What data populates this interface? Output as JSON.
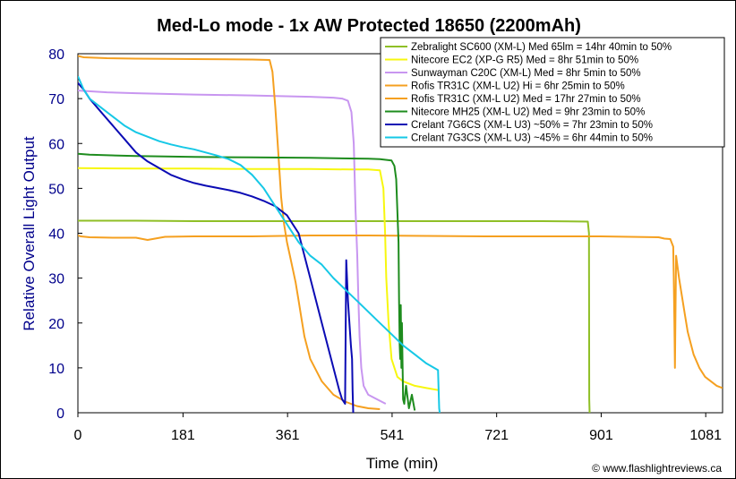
{
  "chart_data": {
    "type": "line",
    "title": "Med-Lo mode - 1x AW Protected 18650 (2200mAh)",
    "xlabel": "Time (min)",
    "ylabel": "Relative Overall Light Output",
    "xlim": [
      0,
      1110
    ],
    "ylim": [
      0,
      80
    ],
    "xticks": [
      0,
      181,
      361,
      541,
      721,
      901,
      1081
    ],
    "yticks": [
      0,
      10,
      20,
      30,
      40,
      50,
      60,
      70,
      80
    ],
    "grid": false,
    "legend_position": "top-right",
    "credit": "© www.flashlightreviews.ca",
    "series": [
      {
        "name": "Zebralight SC600 (XM-L) Med 65lm = 14hr 40min to 50%",
        "color": "#8FBF26",
        "x": [
          0,
          100,
          200,
          300,
          400,
          500,
          600,
          700,
          800,
          878,
          880,
          880.5,
          881
        ],
        "y": [
          42.8,
          42.8,
          42.7,
          42.7,
          42.7,
          42.7,
          42.7,
          42.7,
          42.7,
          42.6,
          40,
          3,
          0
        ]
      },
      {
        "name": "Nitecore EC2 (XP-G R5) Med = 8hr 51min to 50%",
        "color": "#F7F70F",
        "x": [
          0,
          100,
          200,
          300,
          400,
          470,
          500,
          520,
          526,
          529,
          531,
          535,
          540,
          550,
          560,
          580,
          600,
          622
        ],
        "y": [
          54.5,
          54.4,
          54.4,
          54.3,
          54.3,
          54.2,
          54.2,
          54,
          50,
          40,
          30,
          20,
          12,
          8,
          7,
          6,
          5.5,
          5
        ]
      },
      {
        "name": "Sunwayman C20C (XM-L) Med = 8hr 5min to 50%",
        "color": "#C896F0",
        "x": [
          0,
          50,
          100,
          200,
          300,
          400,
          440,
          455,
          465,
          471,
          475,
          478,
          481,
          483,
          485,
          488,
          492,
          500,
          515,
          530
        ],
        "y": [
          71.8,
          71.4,
          71.2,
          70.9,
          70.7,
          70.4,
          70.2,
          70,
          69.5,
          67,
          60,
          45,
          35,
          25,
          17,
          10,
          6,
          4,
          3,
          2
        ]
      },
      {
        "name": "Rofis TR31C (XM-L U2) Hi = 6hr 25min to 50%",
        "color": "#F5A020",
        "x": [
          0,
          10,
          50,
          100,
          200,
          300,
          330,
          335,
          340,
          345,
          350,
          355,
          360,
          365,
          370,
          375,
          380,
          385,
          390,
          400,
          420,
          440,
          460,
          480,
          500,
          520
        ],
        "y": [
          79.5,
          79.2,
          79,
          78.9,
          78.8,
          78.7,
          78.6,
          76,
          68,
          58,
          48,
          42,
          38,
          35,
          32,
          29,
          25,
          21,
          17,
          12,
          7,
          4,
          2.5,
          1.5,
          1,
          0.8
        ]
      },
      {
        "name": "Rofis TR31C (XM-L U2) Med = 17hr 27min to 50%",
        "color": "#F5A020",
        "x": [
          0,
          5,
          20,
          60,
          100,
          120,
          150,
          200,
          300,
          400,
          500,
          600,
          700,
          800,
          900,
          950,
          1000,
          1010,
          1020,
          1025,
          1026,
          1027,
          1028,
          1029,
          1030,
          1032,
          1035,
          1040,
          1045,
          1050,
          1060,
          1070,
          1080,
          1090,
          1100,
          1110
        ],
        "y": [
          39.5,
          39.3,
          39.1,
          39,
          39,
          38.5,
          39.2,
          39.3,
          39.3,
          39.5,
          39.5,
          39.4,
          39.3,
          39.3,
          39.3,
          39.2,
          39.1,
          38.8,
          38.7,
          37,
          30,
          20,
          10,
          24,
          35,
          33,
          30,
          26,
          22,
          18,
          13,
          10,
          8,
          7,
          6,
          5.5
        ]
      },
      {
        "name": "Nitecore MH25 (XM-L U2) Med = 9hr 23min to 50%",
        "color": "#1E8C1E",
        "x": [
          0,
          20,
          100,
          200,
          300,
          400,
          500,
          520,
          540,
          545,
          548,
          550,
          552,
          553,
          554,
          555,
          556,
          557,
          558,
          560,
          562,
          565,
          570,
          575,
          580
        ],
        "y": [
          57.7,
          57.5,
          57.2,
          57,
          56.9,
          56.8,
          56.6,
          56.5,
          56.2,
          55,
          52,
          45,
          38,
          25,
          15,
          12,
          24,
          10,
          20,
          3,
          2,
          6,
          1,
          4,
          0.5
        ]
      },
      {
        "name": "Crelant 7G6CS (XM-L U3) ~50% = 7hr 23min to 50%",
        "color": "#0B0BB4",
        "x": [
          0,
          10,
          20,
          40,
          60,
          80,
          100,
          120,
          140,
          160,
          180,
          200,
          220,
          240,
          260,
          280,
          300,
          320,
          340,
          360,
          380,
          400,
          420,
          440,
          450,
          455,
          460,
          462,
          465,
          470,
          472,
          473,
          474
        ],
        "y": [
          73.5,
          72,
          70,
          67,
          64,
          61,
          58,
          56,
          54.5,
          53,
          52,
          51.2,
          50.6,
          50.1,
          49.6,
          49,
          48.2,
          47.2,
          46,
          44,
          40,
          30,
          20,
          10,
          5,
          3,
          2,
          34,
          25,
          15,
          12,
          5,
          0
        ]
      },
      {
        "name": "Crelant 7G3CS (XM-L U3) ~45% = 6hr 44min to 50%",
        "color": "#16C8E6",
        "x": [
          0,
          10,
          20,
          40,
          60,
          80,
          100,
          120,
          140,
          160,
          180,
          200,
          220,
          240,
          260,
          280,
          300,
          320,
          340,
          360,
          380,
          400,
          420,
          440,
          460,
          480,
          500,
          520,
          540,
          560,
          580,
          600,
          620,
          622,
          623
        ],
        "y": [
          75,
          72,
          70,
          68,
          66,
          64,
          62.5,
          61.5,
          60.5,
          59.8,
          59.2,
          58.7,
          58,
          57.3,
          56.5,
          55.2,
          53,
          50,
          46,
          42,
          38,
          35,
          33,
          30,
          27.5,
          25,
          22.5,
          20,
          17.5,
          15,
          13,
          11,
          9.5,
          1,
          0
        ]
      }
    ]
  }
}
